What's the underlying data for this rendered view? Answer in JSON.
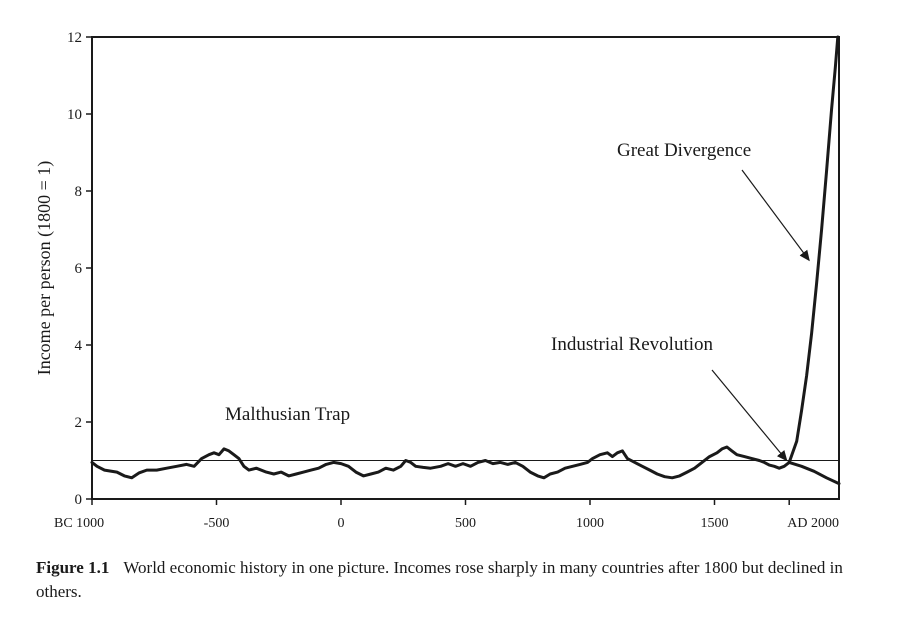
{
  "chart_data": {
    "type": "line",
    "title": "",
    "xlabel": "",
    "ylabel": "Income per person (1800 = 1)",
    "xlim": [
      -1000,
      2000
    ],
    "ylim": [
      0,
      12
    ],
    "yticks": [
      0,
      2,
      4,
      6,
      8,
      10,
      12
    ],
    "xticks": [
      {
        "value": -1000,
        "label": "BC 1000"
      },
      {
        "value": -500,
        "label": "-500"
      },
      {
        "value": 0,
        "label": "0"
      },
      {
        "value": 500,
        "label": "500"
      },
      {
        "value": 1000,
        "label": "1000"
      },
      {
        "value": 1500,
        "label": "1500"
      },
      {
        "value": 1800,
        "label": "AD 2000"
      }
    ],
    "reference_line": {
      "y": 1
    },
    "series": [
      {
        "points": [
          [
            -1000,
            0.95
          ],
          [
            -980,
            0.85
          ],
          [
            -950,
            0.75
          ],
          [
            -900,
            0.7
          ],
          [
            -870,
            0.6
          ],
          [
            -840,
            0.55
          ],
          [
            -810,
            0.68
          ],
          [
            -780,
            0.75
          ],
          [
            -740,
            0.75
          ],
          [
            -700,
            0.8
          ],
          [
            -660,
            0.85
          ],
          [
            -620,
            0.9
          ],
          [
            -590,
            0.85
          ],
          [
            -560,
            1.05
          ],
          [
            -530,
            1.15
          ],
          [
            -510,
            1.2
          ],
          [
            -490,
            1.15
          ],
          [
            -470,
            1.3
          ],
          [
            -450,
            1.25
          ],
          [
            -430,
            1.15
          ],
          [
            -410,
            1.05
          ],
          [
            -390,
            0.85
          ],
          [
            -370,
            0.75
          ],
          [
            -340,
            0.8
          ],
          [
            -300,
            0.7
          ],
          [
            -270,
            0.65
          ],
          [
            -240,
            0.7
          ],
          [
            -210,
            0.6
          ],
          [
            -180,
            0.65
          ],
          [
            -150,
            0.7
          ],
          [
            -120,
            0.75
          ],
          [
            -90,
            0.8
          ],
          [
            -60,
            0.9
          ],
          [
            -30,
            0.95
          ],
          [
            0,
            0.92
          ],
          [
            30,
            0.85
          ],
          [
            60,
            0.7
          ],
          [
            90,
            0.6
          ],
          [
            120,
            0.65
          ],
          [
            150,
            0.7
          ],
          [
            180,
            0.8
          ],
          [
            210,
            0.75
          ],
          [
            240,
            0.85
          ],
          [
            260,
            1.0
          ],
          [
            280,
            0.95
          ],
          [
            300,
            0.85
          ],
          [
            330,
            0.82
          ],
          [
            360,
            0.8
          ],
          [
            400,
            0.85
          ],
          [
            430,
            0.92
          ],
          [
            460,
            0.85
          ],
          [
            490,
            0.92
          ],
          [
            520,
            0.85
          ],
          [
            550,
            0.95
          ],
          [
            580,
            1.0
          ],
          [
            610,
            0.92
          ],
          [
            640,
            0.95
          ],
          [
            670,
            0.9
          ],
          [
            700,
            0.95
          ],
          [
            730,
            0.85
          ],
          [
            760,
            0.7
          ],
          [
            790,
            0.6
          ],
          [
            815,
            0.55
          ],
          [
            840,
            0.65
          ],
          [
            870,
            0.7
          ],
          [
            900,
            0.8
          ],
          [
            930,
            0.85
          ],
          [
            960,
            0.9
          ],
          [
            990,
            0.95
          ],
          [
            1010,
            1.05
          ],
          [
            1040,
            1.15
          ],
          [
            1070,
            1.2
          ],
          [
            1090,
            1.1
          ],
          [
            1110,
            1.2
          ],
          [
            1130,
            1.25
          ],
          [
            1150,
            1.05
          ],
          [
            1180,
            0.95
          ],
          [
            1210,
            0.85
          ],
          [
            1240,
            0.75
          ],
          [
            1270,
            0.65
          ],
          [
            1300,
            0.58
          ],
          [
            1330,
            0.55
          ],
          [
            1360,
            0.6
          ],
          [
            1390,
            0.7
          ],
          [
            1420,
            0.8
          ],
          [
            1450,
            0.95
          ],
          [
            1480,
            1.1
          ],
          [
            1510,
            1.2
          ],
          [
            1530,
            1.3
          ],
          [
            1550,
            1.35
          ],
          [
            1570,
            1.25
          ],
          [
            1590,
            1.15
          ],
          [
            1620,
            1.1
          ],
          [
            1650,
            1.05
          ],
          [
            1680,
            1.0
          ],
          [
            1700,
            0.95
          ],
          [
            1720,
            0.88
          ],
          [
            1740,
            0.85
          ],
          [
            1760,
            0.8
          ],
          [
            1780,
            0.85
          ],
          [
            1800,
            0.95
          ]
        ]
      },
      {
        "points": [
          [
            1800,
            0.95
          ],
          [
            1830,
            1.5
          ],
          [
            1850,
            2.3
          ],
          [
            1870,
            3.2
          ],
          [
            1890,
            4.3
          ],
          [
            1910,
            5.6
          ],
          [
            1930,
            7.0
          ],
          [
            1950,
            8.5
          ],
          [
            1970,
            10.1
          ],
          [
            1985,
            11.2
          ],
          [
            1995,
            12.0
          ]
        ]
      },
      {
        "points": [
          [
            1800,
            0.95
          ],
          [
            1850,
            0.85
          ],
          [
            1900,
            0.72
          ],
          [
            1950,
            0.55
          ],
          [
            2000,
            0.4
          ]
        ]
      }
    ],
    "annotations": [
      {
        "text": "Malthusian Trap"
      },
      {
        "text": "Industrial Revolution",
        "arrow_to": [
          1790,
          1.0
        ]
      },
      {
        "text": "Great Divergence",
        "arrow_to": [
          1880,
          6.2
        ]
      }
    ]
  },
  "caption": {
    "label": "Figure 1.1",
    "text": "World economic history in one picture. Incomes rose sharply in many countries after 1800 but declined in others."
  }
}
